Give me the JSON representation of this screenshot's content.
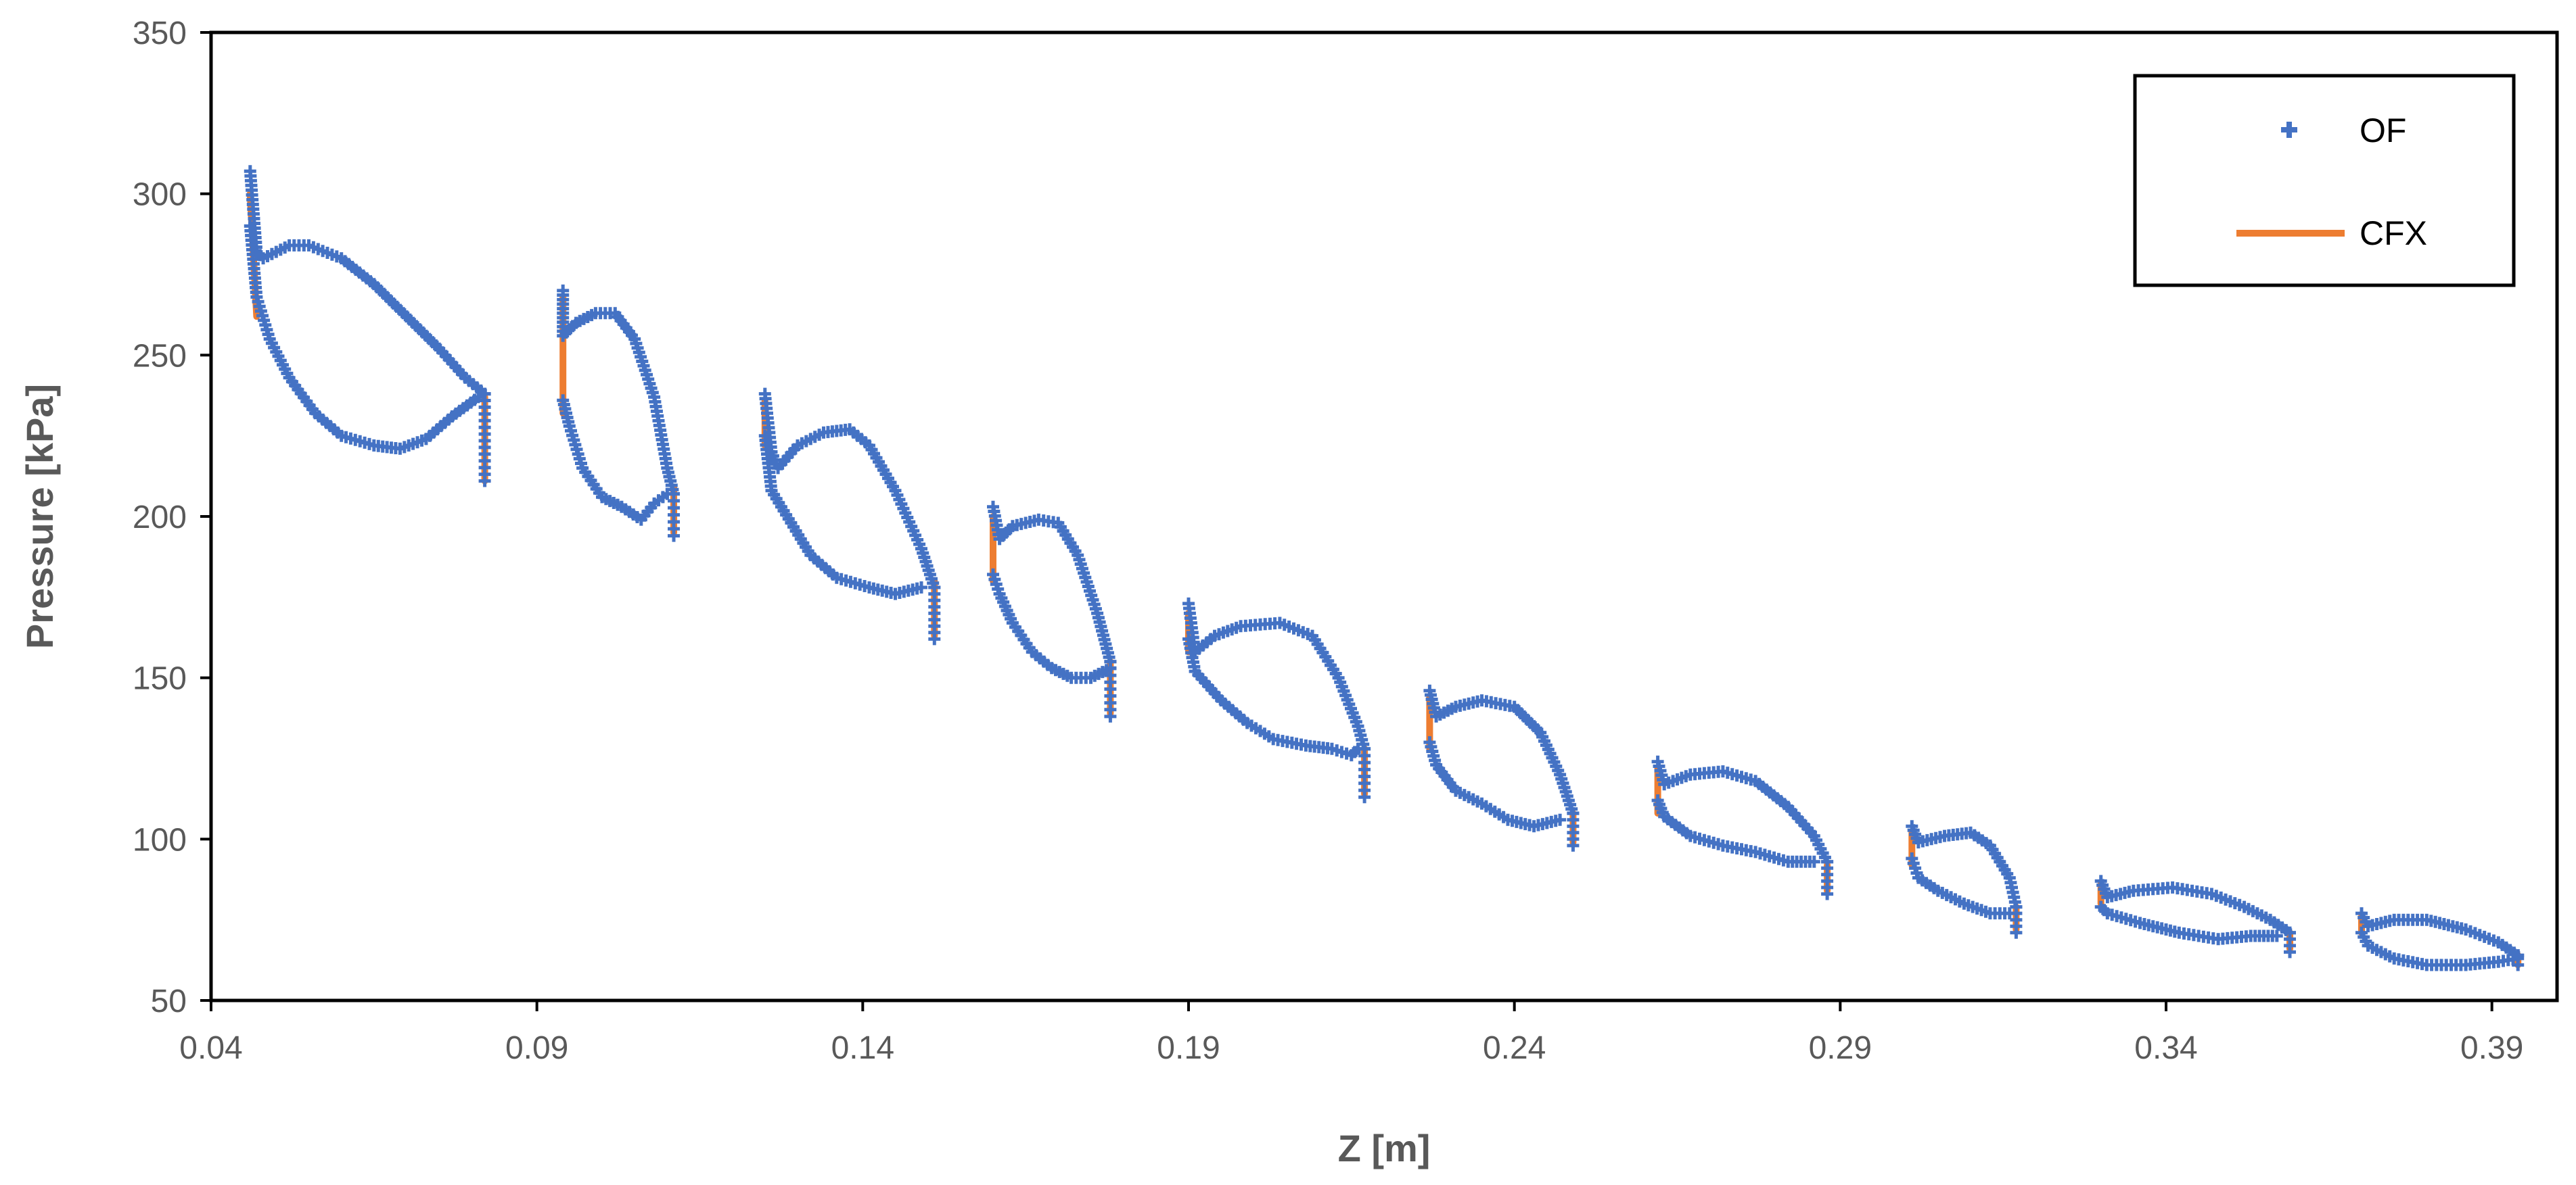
{
  "chart_data": {
    "type": "scatter",
    "title": "",
    "xlabel": "Z [m]",
    "ylabel": "Pressure [kPa]",
    "xlim": [
      0.04,
      0.4
    ],
    "ylim": [
      50,
      350
    ],
    "xticks": [
      0.04,
      0.09,
      0.14,
      0.19,
      0.24,
      0.29,
      0.34,
      0.39
    ],
    "xtick_labels": [
      "0.04",
      "0.09",
      "0.14",
      "0.19",
      "0.24",
      "0.29",
      "0.34",
      "0.39"
    ],
    "yticks": [
      50,
      100,
      150,
      200,
      250,
      300,
      350
    ],
    "ytick_labels": [
      "50",
      "100",
      "150",
      "200",
      "250",
      "300",
      "350"
    ],
    "grid": false,
    "legend_position": "top-right",
    "colors": {
      "OF": "#4472C4",
      "CFX": "#ED7D31"
    },
    "series": [
      {
        "name": "OF",
        "style": "markers",
        "loops": [
          {
            "upper": [
              [
                0.046,
                307
              ],
              [
                0.047,
                282
              ],
              [
                0.048,
                280
              ],
              [
                0.05,
                282
              ],
              [
                0.052,
                284
              ],
              [
                0.055,
                284
              ],
              [
                0.06,
                280
              ],
              [
                0.065,
                272
              ],
              [
                0.07,
                262
              ],
              [
                0.075,
                252
              ],
              [
                0.079,
                243
              ],
              [
                0.082,
                238
              ]
            ],
            "lower": [
              [
                0.046,
                290
              ],
              [
                0.047,
                268
              ],
              [
                0.049,
                255
              ],
              [
                0.052,
                243
              ],
              [
                0.056,
                232
              ],
              [
                0.06,
                225
              ],
              [
                0.065,
                222
              ],
              [
                0.069,
                221
              ],
              [
                0.073,
                224
              ],
              [
                0.077,
                231
              ],
              [
                0.081,
                237
              ]
            ],
            "te": [
              [
                0.082,
                238
              ],
              [
                0.082,
                211
              ]
            ]
          },
          {
            "upper": [
              [
                0.094,
                270
              ],
              [
                0.094,
                256
              ],
              [
                0.096,
                260
              ],
              [
                0.099,
                263
              ],
              [
                0.102,
                263
              ],
              [
                0.105,
                255
              ],
              [
                0.108,
                237
              ],
              [
                0.11,
                215
              ],
              [
                0.111,
                207
              ]
            ],
            "lower": [
              [
                0.094,
                236
              ],
              [
                0.095,
                228
              ],
              [
                0.097,
                215
              ],
              [
                0.1,
                206
              ],
              [
                0.103,
                203
              ],
              [
                0.106,
                199
              ],
              [
                0.108,
                204
              ],
              [
                0.11,
                207
              ]
            ],
            "te": [
              [
                0.111,
                207
              ],
              [
                0.111,
                194
              ]
            ]
          },
          {
            "upper": [
              [
                0.125,
                238
              ],
              [
                0.126,
                220
              ],
              [
                0.127,
                215
              ],
              [
                0.13,
                222
              ],
              [
                0.134,
                226
              ],
              [
                0.138,
                227
              ],
              [
                0.141,
                222
              ],
              [
                0.145,
                208
              ],
              [
                0.149,
                190
              ],
              [
                0.151,
                178
              ]
            ],
            "lower": [
              [
                0.125,
                225
              ],
              [
                0.126,
                208
              ],
              [
                0.129,
                198
              ],
              [
                0.132,
                188
              ],
              [
                0.136,
                181
              ],
              [
                0.141,
                178
              ],
              [
                0.145,
                176
              ],
              [
                0.149,
                178
              ]
            ],
            "te": [
              [
                0.151,
                178
              ],
              [
                0.151,
                162
              ]
            ]
          },
          {
            "upper": [
              [
                0.16,
                203
              ],
              [
                0.161,
                193
              ],
              [
                0.163,
                197
              ],
              [
                0.167,
                199
              ],
              [
                0.17,
                198
              ],
              [
                0.173,
                188
              ],
              [
                0.176,
                170
              ],
              [
                0.178,
                155
              ]
            ],
            "lower": [
              [
                0.16,
                182
              ],
              [
                0.161,
                176
              ],
              [
                0.163,
                167
              ],
              [
                0.166,
                158
              ],
              [
                0.169,
                153
              ],
              [
                0.172,
                150
              ],
              [
                0.175,
                150
              ],
              [
                0.178,
                153
              ]
            ],
            "te": [
              [
                0.178,
                155
              ],
              [
                0.178,
                138
              ]
            ]
          },
          {
            "upper": [
              [
                0.19,
                173
              ],
              [
                0.191,
                158
              ],
              [
                0.194,
                163
              ],
              [
                0.198,
                166
              ],
              [
                0.204,
                167
              ],
              [
                0.209,
                163
              ],
              [
                0.213,
                150
              ],
              [
                0.216,
                135
              ],
              [
                0.217,
                128
              ]
            ],
            "lower": [
              [
                0.19,
                162
              ],
              [
                0.191,
                152
              ],
              [
                0.195,
                143
              ],
              [
                0.199,
                136
              ],
              [
                0.203,
                131
              ],
              [
                0.208,
                129
              ],
              [
                0.212,
                128
              ],
              [
                0.215,
                126
              ],
              [
                0.216,
                128
              ]
            ],
            "te": [
              [
                0.217,
                128
              ],
              [
                0.217,
                113
              ]
            ]
          },
          {
            "upper": [
              [
                0.227,
                146
              ],
              [
                0.228,
                138
              ],
              [
                0.231,
                141
              ],
              [
                0.235,
                143
              ],
              [
                0.24,
                141
              ],
              [
                0.244,
                133
              ],
              [
                0.247,
                120
              ],
              [
                0.249,
                108
              ]
            ],
            "lower": [
              [
                0.227,
                130
              ],
              [
                0.228,
                123
              ],
              [
                0.231,
                115
              ],
              [
                0.235,
                111
              ],
              [
                0.239,
                106
              ],
              [
                0.243,
                104
              ],
              [
                0.247,
                106
              ]
            ],
            "te": [
              [
                0.249,
                108
              ],
              [
                0.249,
                98
              ]
            ]
          },
          {
            "upper": [
              [
                0.262,
                124
              ],
              [
                0.263,
                117
              ],
              [
                0.267,
                120
              ],
              [
                0.272,
                121
              ],
              [
                0.277,
                118
              ],
              [
                0.282,
                110
              ],
              [
                0.286,
                101
              ],
              [
                0.288,
                93
              ]
            ],
            "lower": [
              [
                0.262,
                112
              ],
              [
                0.263,
                107
              ],
              [
                0.267,
                101
              ],
              [
                0.272,
                98
              ],
              [
                0.277,
                96
              ],
              [
                0.282,
                93
              ],
              [
                0.286,
                93
              ]
            ],
            "te": [
              [
                0.288,
                93
              ],
              [
                0.288,
                83
              ]
            ]
          },
          {
            "upper": [
              [
                0.301,
                104
              ],
              [
                0.302,
                99
              ],
              [
                0.306,
                101
              ],
              [
                0.31,
                102
              ],
              [
                0.313,
                98
              ],
              [
                0.316,
                88
              ],
              [
                0.317,
                79
              ]
            ],
            "lower": [
              [
                0.301,
                94
              ],
              [
                0.302,
                88
              ],
              [
                0.305,
                84
              ],
              [
                0.309,
                80
              ],
              [
                0.313,
                77
              ],
              [
                0.316,
                77
              ]
            ],
            "te": [
              [
                0.317,
                79
              ],
              [
                0.317,
                71
              ]
            ]
          },
          {
            "upper": [
              [
                0.33,
                87
              ],
              [
                0.331,
                82
              ],
              [
                0.335,
                84
              ],
              [
                0.341,
                85
              ],
              [
                0.347,
                83
              ],
              [
                0.352,
                79
              ],
              [
                0.356,
                75
              ],
              [
                0.359,
                71
              ]
            ],
            "lower": [
              [
                0.33,
                79
              ],
              [
                0.331,
                77
              ],
              [
                0.336,
                74
              ],
              [
                0.342,
                71
              ],
              [
                0.348,
                69
              ],
              [
                0.353,
                70
              ],
              [
                0.357,
                70
              ]
            ],
            "te": [
              [
                0.359,
                71
              ],
              [
                0.359,
                65
              ]
            ]
          },
          {
            "upper": [
              [
                0.37,
                77
              ],
              [
                0.371,
                73
              ],
              [
                0.375,
                75
              ],
              [
                0.38,
                75
              ],
              [
                0.386,
                72
              ],
              [
                0.391,
                68
              ],
              [
                0.394,
                64
              ]
            ],
            "lower": [
              [
                0.37,
                71
              ],
              [
                0.371,
                67
              ],
              [
                0.375,
                63
              ],
              [
                0.38,
                61
              ],
              [
                0.386,
                61
              ],
              [
                0.391,
                62
              ],
              [
                0.394,
                63
              ]
            ],
            "te": [
              [
                0.394,
                64
              ],
              [
                0.394,
                61
              ]
            ]
          }
        ]
      },
      {
        "name": "CFX",
        "style": "line",
        "leading_edges": [
          [
            [
              0.046,
              300
            ],
            [
              0.047,
              262
            ]
          ],
          [
            [
              0.094,
              268
            ],
            [
              0.094,
              232
            ]
          ],
          [
            [
              0.125,
              236
            ],
            [
              0.125,
              222
            ]
          ],
          [
            [
              0.16,
              200
            ],
            [
              0.16,
              180
            ]
          ],
          [
            [
              0.19,
              170
            ],
            [
              0.19,
              158
            ]
          ],
          [
            [
              0.227,
              144
            ],
            [
              0.227,
              128
            ]
          ],
          [
            [
              0.262,
              122
            ],
            [
              0.262,
              108
            ]
          ],
          [
            [
              0.301,
              102
            ],
            [
              0.301,
              92
            ]
          ],
          [
            [
              0.33,
              86
            ],
            [
              0.33,
              80
            ]
          ],
          [
            [
              0.37,
              76
            ],
            [
              0.37,
              71
            ]
          ]
        ],
        "trailing_edges": [
          [
            [
              0.082,
              237
            ],
            [
              0.082,
              211
            ]
          ],
          [
            [
              0.111,
              209
            ],
            [
              0.111,
              195
            ]
          ],
          [
            [
              0.151,
              180
            ],
            [
              0.151,
              163
            ]
          ],
          [
            [
              0.178,
              155
            ],
            [
              0.178,
              139
            ]
          ],
          [
            [
              0.217,
              128
            ],
            [
              0.217,
              114
            ]
          ],
          [
            [
              0.249,
              108
            ],
            [
              0.249,
              99
            ]
          ],
          [
            [
              0.288,
              92
            ],
            [
              0.288,
              84
            ]
          ],
          [
            [
              0.317,
              79
            ],
            [
              0.317,
              72
            ]
          ],
          [
            [
              0.359,
              71
            ],
            [
              0.359,
              66
            ]
          ],
          [
            [
              0.394,
              64
            ],
            [
              0.394,
              61
            ]
          ]
        ]
      }
    ]
  }
}
